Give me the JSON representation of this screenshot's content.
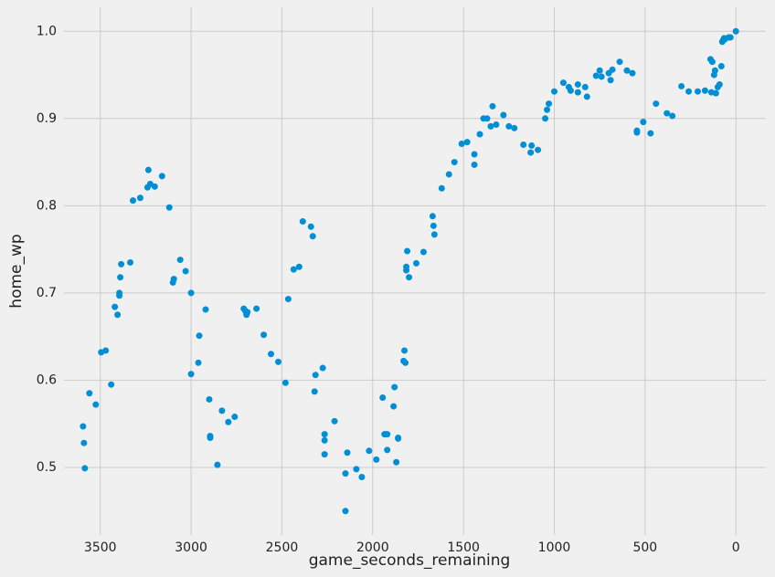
{
  "chart_data": {
    "type": "scatter",
    "x_label": "game_seconds_remaining",
    "y_label": "home_wp",
    "color": "#008fd5",
    "grid": true,
    "x_reversed": true,
    "xlim": [
      3700,
      -165
    ],
    "ylim": [
      0.4225,
      1.0275
    ],
    "xticks": [
      3500,
      3000,
      2500,
      2000,
      1500,
      1000,
      500,
      0
    ],
    "yticks": [
      0.5,
      0.6,
      0.7,
      0.8,
      0.9,
      {
        "value": 1,
        "label": "1.0"
      }
    ],
    "x": [
      3595,
      3590,
      3585,
      3560,
      3525,
      3495,
      3470,
      3440,
      3420,
      3405,
      3395,
      3395,
      3390,
      3385,
      3335,
      3320,
      3280,
      3240,
      3235,
      3225,
      3200,
      3160,
      3120,
      3100,
      3095,
      3060,
      3030,
      3000,
      3000,
      2960,
      2955,
      2920,
      2900,
      2895,
      2895,
      2855,
      2830,
      2795,
      2760,
      2710,
      2700,
      2695,
      2690,
      2640,
      2600,
      2560,
      2520,
      2480,
      2465,
      2435,
      2405,
      2385,
      2340,
      2330,
      2320,
      2315,
      2275,
      2265,
      2265,
      2265,
      2210,
      2150,
      2150,
      2140,
      2090,
      2060,
      2020,
      1980,
      1945,
      1935,
      1930,
      1920,
      1920,
      1885,
      1880,
      1870,
      1860,
      1860,
      1830,
      1825,
      1820,
      1815,
      1815,
      1810,
      1800,
      1760,
      1720,
      1670,
      1665,
      1660,
      1620,
      1580,
      1550,
      1510,
      1480,
      1440,
      1440,
      1410,
      1390,
      1370,
      1350,
      1340,
      1320,
      1280,
      1250,
      1220,
      1170,
      1130,
      1125,
      1090,
      1050,
      1040,
      1030,
      1000,
      950,
      920,
      910,
      870,
      870,
      830,
      820,
      770,
      750,
      740,
      700,
      690,
      680,
      640,
      600,
      570,
      545,
      545,
      510,
      470,
      440,
      380,
      350,
      300,
      260,
      210,
      170,
      140,
      135,
      130,
      120,
      115,
      110,
      100,
      90,
      80,
      75,
      70,
      65,
      60,
      40,
      30,
      0
    ],
    "values": [
      0.547,
      0.528,
      0.499,
      0.585,
      0.572,
      0.632,
      0.634,
      0.595,
      0.684,
      0.675,
      0.7,
      0.697,
      0.718,
      0.733,
      0.735,
      0.806,
      0.809,
      0.821,
      0.841,
      0.825,
      0.822,
      0.834,
      0.798,
      0.712,
      0.716,
      0.738,
      0.725,
      0.7,
      0.607,
      0.62,
      0.651,
      0.681,
      0.578,
      0.534,
      0.536,
      0.503,
      0.565,
      0.552,
      0.558,
      0.682,
      0.679,
      0.675,
      0.678,
      0.682,
      0.652,
      0.63,
      0.621,
      0.597,
      0.693,
      0.727,
      0.73,
      0.782,
      0.776,
      0.765,
      0.587,
      0.606,
      0.614,
      0.538,
      0.531,
      0.515,
      0.553,
      0.493,
      0.45,
      0.517,
      0.498,
      0.489,
      0.519,
      0.509,
      0.58,
      0.538,
      0.538,
      0.52,
      0.538,
      0.57,
      0.592,
      0.506,
      0.533,
      0.534,
      0.622,
      0.634,
      0.62,
      0.73,
      0.726,
      0.748,
      0.718,
      0.734,
      0.747,
      0.788,
      0.777,
      0.767,
      0.82,
      0.836,
      0.85,
      0.871,
      0.873,
      0.859,
      0.847,
      0.882,
      0.9,
      0.9,
      0.891,
      0.914,
      0.893,
      0.904,
      0.891,
      0.889,
      0.87,
      0.861,
      0.869,
      0.864,
      0.9,
      0.91,
      0.917,
      0.931,
      0.941,
      0.936,
      0.932,
      0.93,
      0.939,
      0.936,
      0.925,
      0.949,
      0.955,
      0.948,
      0.952,
      0.944,
      0.956,
      0.965,
      0.955,
      0.952,
      0.884,
      0.886,
      0.896,
      0.883,
      0.917,
      0.906,
      0.903,
      0.937,
      0.931,
      0.931,
      0.932,
      0.968,
      0.93,
      0.965,
      0.95,
      0.955,
      0.929,
      0.936,
      0.939,
      0.96,
      0.988,
      0.99,
      0.992,
      0.991,
      0.993,
      0.993,
      1.0
    ]
  }
}
